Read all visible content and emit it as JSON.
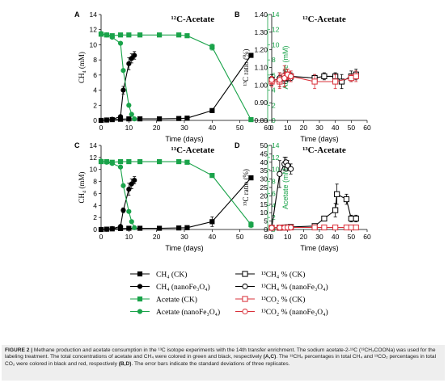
{
  "chart_data": [
    {
      "panel": "A",
      "type": "line",
      "title": "¹²C-Acetate",
      "xlabel": "Time (days)",
      "ylabel": "CH₄ (mM)",
      "ylabel_right": "Acetate (mM)",
      "xlim": [
        0,
        60
      ],
      "ylim": [
        0,
        14
      ],
      "ylim_right": [
        0,
        14
      ],
      "xticks": [
        "0",
        "10",
        "20",
        "30",
        "40",
        "50",
        "60"
      ],
      "yticks": [
        "0",
        "2",
        "4",
        "6",
        "8",
        "10",
        "12",
        "14"
      ],
      "yticks_right": [
        "0",
        "2",
        "4",
        "6",
        "8",
        "10",
        "12",
        "14"
      ],
      "series": [
        {
          "name": "CH₄ (CK)",
          "axis": "left",
          "color": "#000000",
          "marker": "square",
          "x": [
            0,
            2,
            4,
            7,
            10,
            14,
            21,
            28,
            31,
            40,
            54
          ],
          "y": [
            0,
            0.05,
            0.1,
            0.15,
            0.2,
            0.2,
            0.2,
            0.25,
            0.3,
            1.3,
            8.6
          ],
          "err": [
            0,
            0,
            0,
            0,
            0,
            0,
            0,
            0,
            0,
            0.2,
            0.2
          ]
        },
        {
          "name": "CH₄ (nanoFe₃O₄)",
          "axis": "left",
          "color": "#000000",
          "marker": "circle",
          "x": [
            0,
            2,
            4,
            7,
            8,
            10,
            11,
            12
          ],
          "y": [
            0,
            0.05,
            0.15,
            0.5,
            4.0,
            7.5,
            8.2,
            8.6
          ],
          "err": [
            0,
            0,
            0,
            0,
            0.5,
            0.8,
            0.6,
            0.5
          ]
        },
        {
          "name": "Acetate (CK)",
          "axis": "right",
          "color": "#1aa34a",
          "marker": "square",
          "x": [
            0,
            2,
            4,
            7,
            10,
            14,
            21,
            28,
            31,
            40,
            54
          ],
          "y": [
            11.4,
            11.3,
            11.2,
            11.3,
            11.3,
            11.3,
            11.3,
            11.3,
            11.2,
            9.7,
            0.1
          ],
          "err": [
            0,
            0,
            0,
            0,
            0,
            0,
            0,
            0,
            0,
            0.4,
            0
          ]
        },
        {
          "name": "Acetate (nanoFe₃O₄)",
          "axis": "right",
          "color": "#1aa34a",
          "marker": "circle",
          "x": [
            0,
            2,
            4,
            7,
            8,
            10,
            11,
            12
          ],
          "y": [
            11.5,
            11.3,
            11.0,
            10.2,
            6.6,
            2.0,
            0.8,
            0.2
          ],
          "err": [
            0,
            0,
            0,
            0,
            0,
            0,
            0,
            0
          ]
        }
      ]
    },
    {
      "panel": "B",
      "type": "line",
      "title": "¹²C-Acetate",
      "xlabel": "Time (days)",
      "ylabel": "¹³C ratio (%)",
      "xlim": [
        0,
        60
      ],
      "ylim": [
        0.8,
        1.4
      ],
      "xticks": [
        "0",
        "10",
        "20",
        "30",
        "40",
        "50",
        "60"
      ],
      "yticks": [
        "0.80",
        "0.90",
        "1.00",
        "1.10",
        "1.20",
        "1.30",
        "1.40"
      ],
      "series": [
        {
          "name": "¹³CH₄ % (CK)",
          "color": "#000000",
          "marker": "square-open",
          "x": [
            0,
            5,
            8,
            10,
            12,
            27,
            33,
            40,
            44,
            50,
            53
          ],
          "y": [
            1.03,
            1.03,
            1.04,
            1.05,
            1.05,
            1.04,
            1.05,
            1.05,
            1.02,
            1.05,
            1.06
          ],
          "err": [
            0.03,
            0.04,
            0.03,
            0.02,
            0.02,
            0.02,
            0.02,
            0.02,
            0.04,
            0.03,
            0.03
          ]
        },
        {
          "name": "¹³CH₄ % (nanoFe₃O₄)",
          "color": "#000000",
          "marker": "circle-open",
          "x": [
            0,
            5,
            8,
            10,
            12
          ],
          "y": [
            1.02,
            1.04,
            1.05,
            1.04,
            1.04
          ],
          "err": [
            0.02,
            0.03,
            0.03,
            0.02,
            0.02
          ]
        },
        {
          "name": "¹³CO₂ % (CK)",
          "color": "#d9303a",
          "marker": "square-open",
          "x": [
            0,
            5,
            8,
            10,
            12,
            27,
            40,
            50,
            53
          ],
          "y": [
            1.02,
            1.02,
            1.05,
            1.06,
            1.05,
            1.02,
            1.02,
            1.04,
            1.05
          ],
          "err": [
            0.03,
            0.04,
            0.06,
            0.03,
            0.03,
            0.04,
            0.04,
            0.02,
            0.03
          ]
        },
        {
          "name": "¹³CO₂ % (nanoFe₃O₄)",
          "color": "#d9303a",
          "marker": "circle-open",
          "x": [
            0,
            5,
            8,
            10,
            12
          ],
          "y": [
            1.03,
            1.03,
            1.04,
            1.06,
            1.05
          ],
          "err": [
            0.02,
            0.04,
            0.05,
            0.03,
            0.03
          ]
        }
      ]
    },
    {
      "panel": "C",
      "type": "line",
      "title": "¹³C-Acetate",
      "xlabel": "Time (days)",
      "ylabel": "CH₄ (mM)",
      "ylabel_right": "Acetate (mM)",
      "xlim": [
        0,
        60
      ],
      "ylim": [
        0,
        14
      ],
      "ylim_right": [
        0,
        14
      ],
      "xticks": [
        "0",
        "10",
        "20",
        "30",
        "40",
        "50",
        "60"
      ],
      "yticks": [
        "0",
        "2",
        "4",
        "6",
        "8",
        "10",
        "12",
        "14"
      ],
      "yticks_right": [
        "0",
        "2",
        "4",
        "6",
        "8",
        "10",
        "12",
        "14"
      ],
      "series": [
        {
          "name": "CH₄ (CK)",
          "axis": "left",
          "color": "#000000",
          "marker": "square",
          "x": [
            0,
            2,
            4,
            7,
            10,
            14,
            21,
            28,
            31,
            40,
            54
          ],
          "y": [
            0,
            0.05,
            0.1,
            0.15,
            0.2,
            0.2,
            0.2,
            0.25,
            0.3,
            1.3,
            8.6
          ],
          "err": [
            0,
            0,
            0,
            0,
            0,
            0,
            0,
            0,
            0,
            0.8,
            0.2
          ]
        },
        {
          "name": "CH₄ (nanoFe₃O₄)",
          "axis": "left",
          "color": "#000000",
          "marker": "circle",
          "x": [
            0,
            2,
            4,
            7,
            8,
            10,
            11,
            12
          ],
          "y": [
            0,
            0.05,
            0.15,
            0.5,
            3.2,
            6.7,
            7.6,
            8.2
          ],
          "err": [
            0,
            0,
            0,
            0,
            0.4,
            1.0,
            0.8,
            0.6
          ]
        },
        {
          "name": "Acetate (CK)",
          "axis": "right",
          "color": "#1aa34a",
          "marker": "square",
          "x": [
            0,
            2,
            4,
            7,
            10,
            14,
            21,
            28,
            31,
            40,
            54
          ],
          "y": [
            11.3,
            11.3,
            11.2,
            11.3,
            11.3,
            11.3,
            11.3,
            11.3,
            11.2,
            9.0,
            0.8
          ],
          "err": [
            0,
            0,
            0,
            0,
            0,
            0,
            0,
            0,
            0,
            0.3,
            0.5
          ]
        },
        {
          "name": "Acetate (nanoFe₃O₄)",
          "axis": "right",
          "color": "#1aa34a",
          "marker": "circle",
          "x": [
            0,
            2,
            4,
            7,
            8,
            10,
            11,
            12
          ],
          "y": [
            11.4,
            11.2,
            11.0,
            10.4,
            7.3,
            3.0,
            1.3,
            0.3
          ],
          "err": [
            0,
            0,
            0,
            0,
            0,
            0,
            0,
            0
          ]
        }
      ]
    },
    {
      "panel": "D",
      "type": "line",
      "title": "¹³C-Acetate",
      "xlabel": "Time (days)",
      "ylabel": "¹³C ratio (%)",
      "xlim": [
        0,
        60
      ],
      "ylim": [
        0,
        50
      ],
      "xticks": [
        "0",
        "10",
        "20",
        "30",
        "40",
        "50",
        "60"
      ],
      "yticks": [
        "0",
        "5",
        "10",
        "15",
        "20",
        "25",
        "30",
        "35",
        "40",
        "45",
        "50"
      ],
      "series": [
        {
          "name": "¹³CH₄ % (CK)",
          "color": "#000000",
          "marker": "square-open",
          "x": [
            0,
            5,
            8,
            10,
            12,
            27,
            33,
            40,
            41,
            47,
            50,
            53
          ],
          "y": [
            1,
            1,
            1.2,
            1.3,
            1.5,
            2,
            6.5,
            11.5,
            21,
            18,
            6.5,
            6.5
          ],
          "err": [
            0,
            0,
            0,
            0,
            0,
            0.5,
            1.5,
            4,
            6,
            3,
            2,
            2
          ]
        },
        {
          "name": "¹³CH₄ % (nanoFe₃O₄)",
          "color": "#000000",
          "marker": "circle-open",
          "x": [
            0,
            5,
            8,
            9,
            10,
            12
          ],
          "y": [
            1,
            33,
            39,
            40,
            38,
            36
          ],
          "err": [
            0,
            8,
            4,
            3,
            3,
            3
          ]
        },
        {
          "name": "¹³CO₂ % (CK)",
          "color": "#d9303a",
          "marker": "square-open",
          "x": [
            0,
            5,
            8,
            10,
            12,
            27,
            33,
            40,
            47,
            50,
            53
          ],
          "y": [
            1,
            1.1,
            1.1,
            1.1,
            1.2,
            1.2,
            1.2,
            1.2,
            1.2,
            1.2,
            1.2
          ],
          "err": [
            0,
            0,
            0,
            0,
            0,
            0,
            0,
            0,
            0,
            0,
            0
          ]
        },
        {
          "name": "¹³CO₂ % (nanoFe₃O₄)",
          "color": "#d9303a",
          "marker": "circle-open",
          "x": [
            0,
            5,
            8,
            10,
            12
          ],
          "y": [
            1,
            1.1,
            1.1,
            1.2,
            1.2
          ],
          "err": [
            0,
            0,
            0,
            0,
            0
          ]
        }
      ]
    }
  ],
  "legend_left": [
    {
      "label": "CH₄ (CK)",
      "color": "#000000",
      "marker": "square"
    },
    {
      "label": "CH₄ (nanoFe₃O₄)",
      "color": "#000000",
      "marker": "circle"
    },
    {
      "label": "Acetate (CK)",
      "color": "#1aa34a",
      "marker": "square"
    },
    {
      "label": "Acetate (nanoFe₃O₄)",
      "color": "#1aa34a",
      "marker": "circle"
    }
  ],
  "legend_right": [
    {
      "label": "¹³CH₄ % (CK)",
      "color": "#000000",
      "marker": "square-open"
    },
    {
      "label": "¹³CH₄ % (nanoFe₃O₄)",
      "color": "#000000",
      "marker": "circle-open"
    },
    {
      "label": "¹³CO₂ % (CK)",
      "color": "#d9303a",
      "marker": "square-open"
    },
    {
      "label": "¹³CO₂ % (nanoFe₃O₄)",
      "color": "#d9303a",
      "marker": "circle-open"
    }
  ],
  "caption": {
    "lead": "FIGURE 2 |",
    "text": " Methane production and acetate consumption in the ¹³C isotope experiments with the 14th transfer enrichment. The sodium acetate-2-¹³C (¹³CH₃COONa) was used for the labeling treatment. The total concentrations of acetate and CH₄ were colored in green and black, respectively ",
    "ref_ac": "(A,C)",
    "text2": ". The ¹³CH₄ percentages in total CH₄ and ¹³CO₂ percentages in total CO₂ were colored in black and red, respectively ",
    "ref_bd": "(B,D)",
    "text3": ". The error bars indicate the standard deviations of three replicates."
  }
}
